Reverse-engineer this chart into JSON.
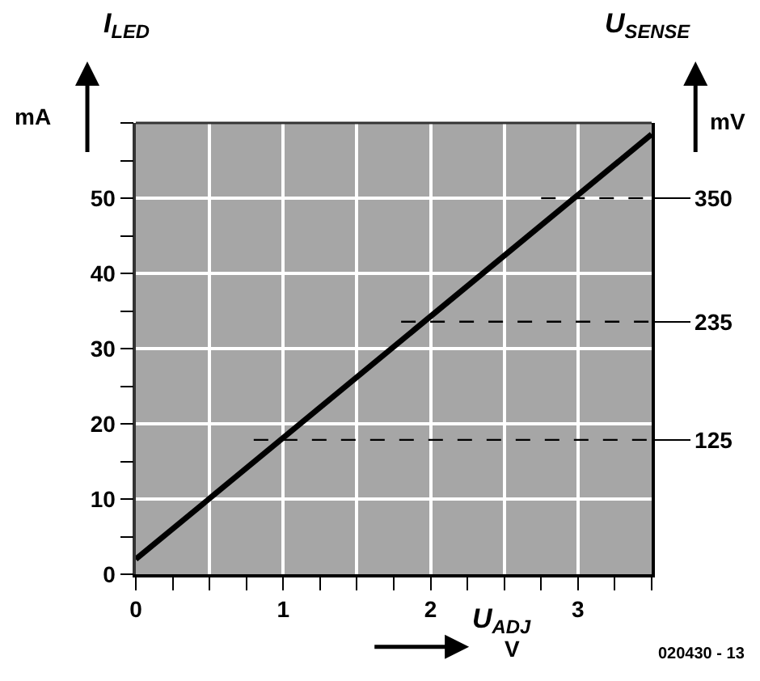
{
  "chart_data": {
    "type": "line",
    "xlabel": "U$_{ADJ}$",
    "ylabel": "I$_{LED}$",
    "y2label": "U$_{SENSE}$",
    "annotations": [
      "mA",
      "mV",
      "V",
      "020430 - 13"
    ],
    "series": [
      {
        "color": "#000000",
        "x": [
          0,
          3.5
        ],
        "values": [
          2,
          58.5
        ]
      },
      {
        "color": "#000000",
        "x": [
          0.8,
          3.5
        ],
        "values": [
          125,
          125
        ],
        "axis": "y2",
        "line_style": "dashed"
      },
      {
        "color": "#000000",
        "x": [
          1.8,
          3.5
        ],
        "values": [
          235,
          235
        ],
        "axis": "y2",
        "line_style": "dashed"
      },
      {
        "color": "#000000",
        "x": [
          2.75,
          3.5
        ],
        "values": [
          350,
          350
        ],
        "axis": "y2",
        "line_style": "dashed"
      }
    ],
    "xlim": [
      0,
      3.5
    ],
    "xticks": [
      0,
      {
        "value": 0.5,
        "label": null
      },
      1,
      {
        "value": 1.5,
        "label": null
      },
      2,
      {
        "value": 2.5,
        "label": null
      },
      3,
      {
        "value": 3.5,
        "label": null
      }
    ],
    "ylim": [
      0,
      60
    ],
    "yticks": [
      0,
      10,
      20,
      30,
      40,
      50
    ],
    "y2lim": [
      0,
      420
    ],
    "y2ticks": [
      125,
      235,
      350
    ],
    "grid": true,
    "line_style": "solid",
    "marker": "none"
  }
}
